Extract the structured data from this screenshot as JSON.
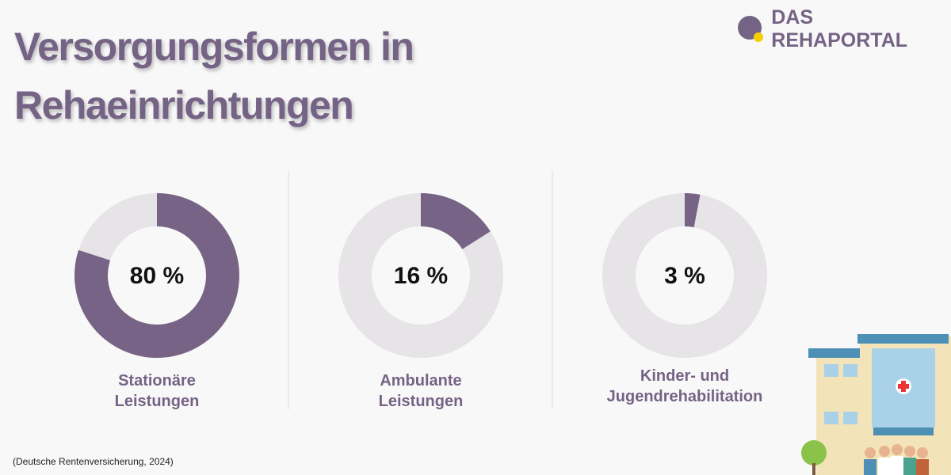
{
  "title": "Versorgungsformen in Rehaeinrichtungen",
  "logo": "DAS REHAPORTAL",
  "source": "(Deutsche Rentenversicherung, 2024)",
  "chart_data": [
    {
      "type": "donut",
      "label": "Stationäre Leistungen",
      "values": [
        80
      ],
      "value_labels": [
        "80 %"
      ],
      "color": "#766385",
      "track_color": "#e6e4e6"
    },
    {
      "type": "donut",
      "label": "Ambulante Leistungen",
      "values": [
        16
      ],
      "value_labels": [
        "16 %"
      ],
      "color": "#766385",
      "track_color": "#e6e4e6"
    },
    {
      "type": "donut",
      "label": "Kinder- und Jugendrehabilitation",
      "values": [
        3
      ],
      "value_labels": [
        "3 %"
      ],
      "color": "#766385",
      "track_color": "#e6e4e6"
    }
  ]
}
